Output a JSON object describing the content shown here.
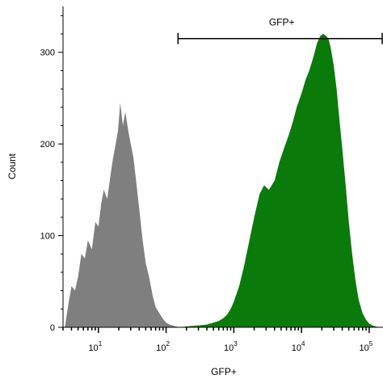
{
  "chart_data": {
    "type": "area",
    "xlabel": "GFP+",
    "ylabel": "Count",
    "x_scale": "log",
    "xlim": [
      3,
      160000
    ],
    "ylim": [
      0,
      350
    ],
    "x_ticks": [
      {
        "value": 10,
        "base": "10",
        "exp": "1"
      },
      {
        "value": 100,
        "base": "10",
        "exp": "2"
      },
      {
        "value": 1000,
        "base": "10",
        "exp": "3"
      },
      {
        "value": 10000,
        "base": "10",
        "exp": "4"
      },
      {
        "value": 100000,
        "base": "10",
        "exp": "5"
      }
    ],
    "y_ticks": [
      0,
      100,
      200,
      300
    ],
    "series": [
      {
        "color": "#7f7f7f",
        "x": [
          3.2,
          3.6,
          4.0,
          4.5,
          5.0,
          5.6,
          6.3,
          7.0,
          8.0,
          9.0,
          10.0,
          11.0,
          12.0,
          13.5,
          15.0,
          16.5,
          18.0,
          19.5,
          21.0,
          23.0,
          25.0,
          27.5,
          30.0,
          33.0,
          36.0,
          40.0,
          45.0,
          50.0,
          56.0,
          63.0,
          70.0,
          80.0,
          90.0,
          100.0,
          112.0,
          125.0,
          140.0,
          160.0
        ],
        "y": [
          0,
          25,
          45,
          40,
          55,
          80,
          75,
          95,
          85,
          115,
          110,
          135,
          150,
          140,
          165,
          185,
          200,
          215,
          245,
          220,
          235,
          215,
          200,
          185,
          160,
          130,
          95,
          70,
          55,
          35,
          22,
          15,
          9,
          5,
          3,
          2,
          1,
          0
        ]
      },
      {
        "color": "#0a7a0a",
        "x": [
          160,
          200,
          300,
          400,
          500,
          600,
          700,
          800,
          900,
          1000,
          1200,
          1400,
          1700,
          2000,
          2400,
          2800,
          3300,
          4000,
          4700,
          5500,
          6500,
          7500,
          8500,
          10000,
          11500,
          13000,
          15000,
          17000,
          19000,
          21000,
          23000,
          25000,
          27000,
          30000,
          33000,
          36000,
          40000,
          45000,
          50000,
          56000,
          63000,
          70000,
          80000,
          90000,
          100000,
          112000,
          125000,
          140000,
          160000
        ],
        "y": [
          0,
          1,
          2,
          3,
          5,
          7,
          10,
          14,
          20,
          28,
          45,
          65,
          95,
          120,
          145,
          155,
          150,
          160,
          180,
          195,
          210,
          225,
          240,
          255,
          270,
          280,
          295,
          310,
          318,
          320,
          318,
          315,
          305,
          285,
          260,
          230,
          195,
          155,
          115,
          80,
          50,
          30,
          15,
          8,
          4,
          2,
          1,
          0,
          0
        ]
      }
    ],
    "gate": {
      "label": "GFP+",
      "x_start": 150,
      "x_end": 160000,
      "y": 315
    }
  }
}
